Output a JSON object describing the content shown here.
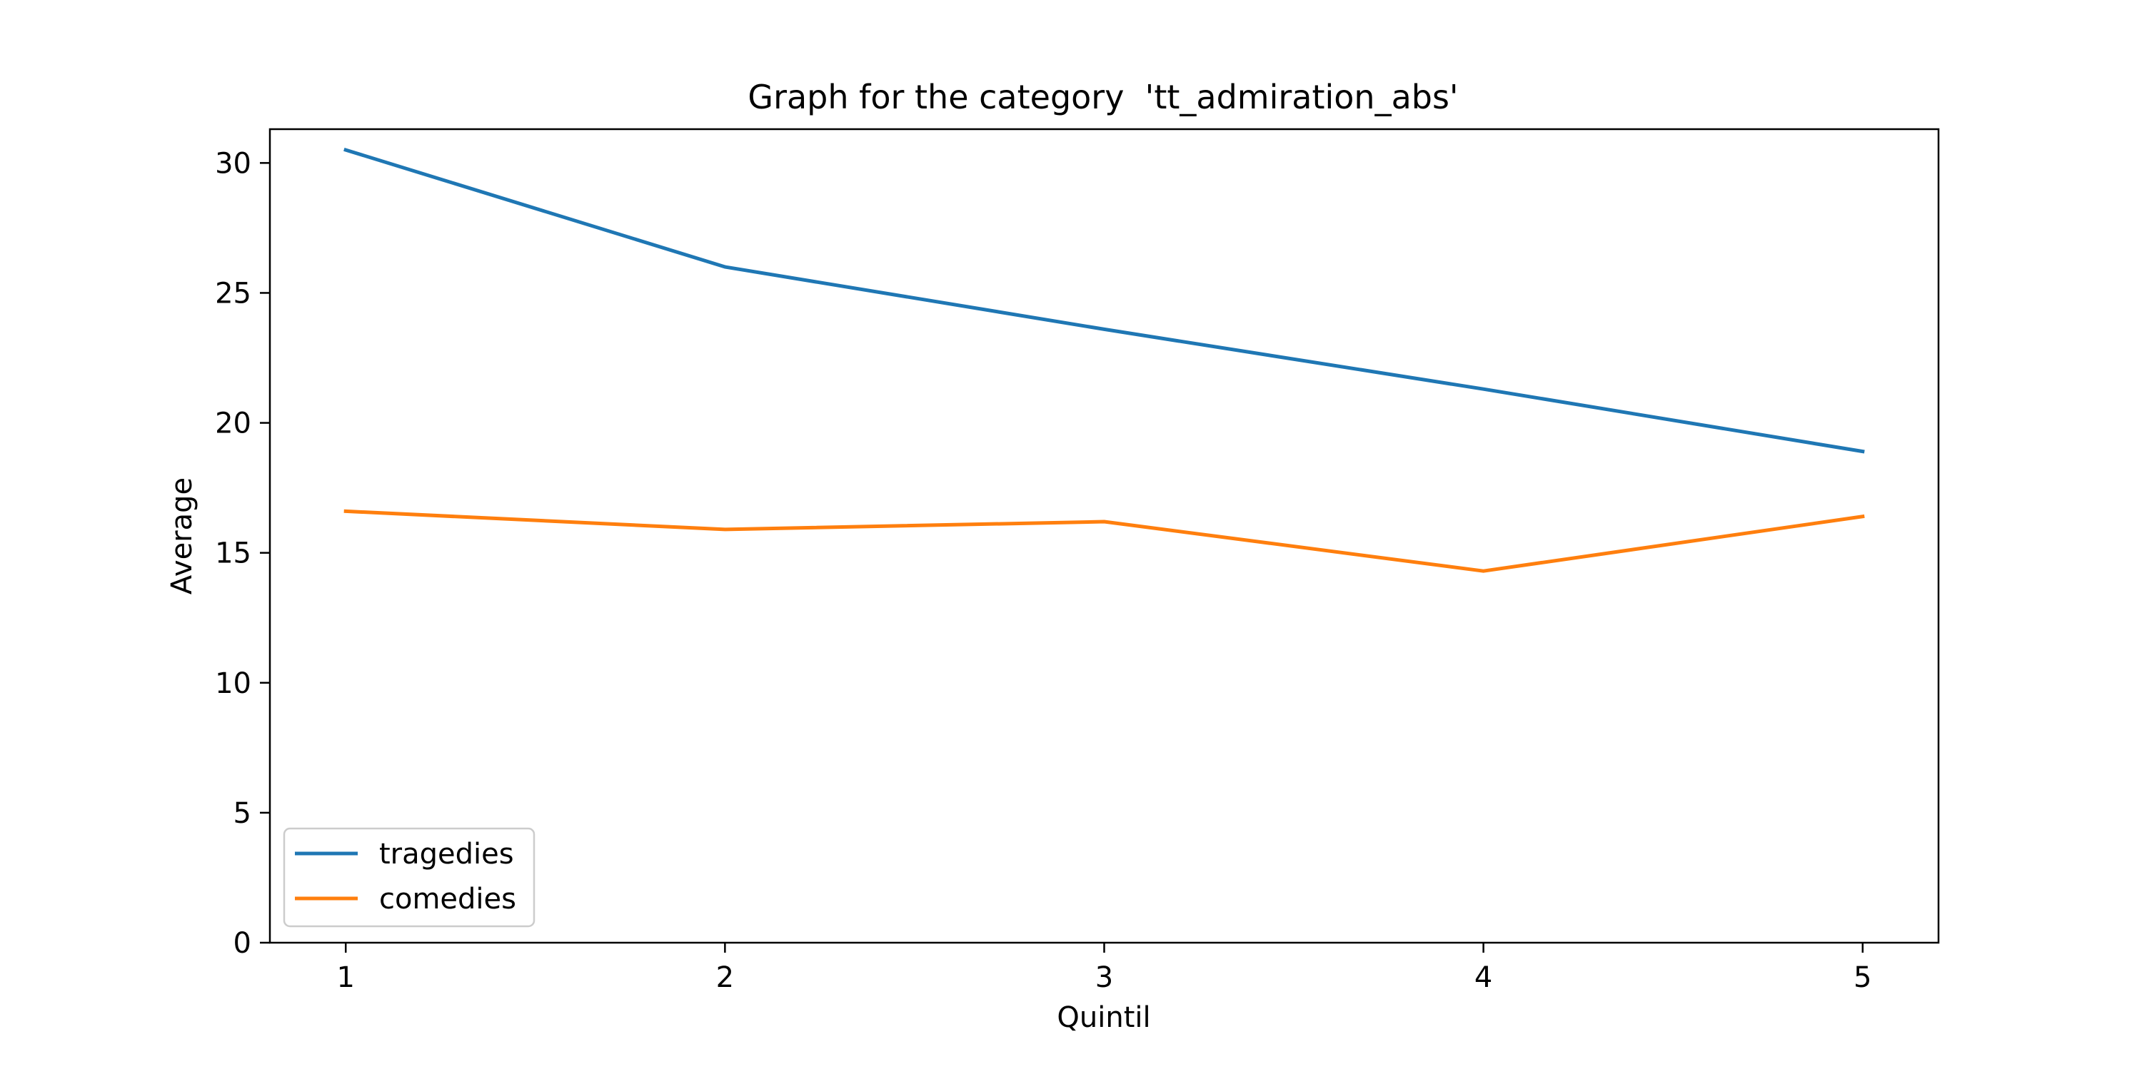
{
  "chart_data": {
    "type": "line",
    "title": "Graph for the category  'tt_admiration_abs'",
    "xlabel": "Quintil",
    "ylabel": "Average",
    "x": [
      1,
      2,
      3,
      4,
      5
    ],
    "xlim": [
      0.8,
      5.2
    ],
    "ylim": [
      0,
      31.3
    ],
    "xticks": [
      1,
      2,
      3,
      4,
      5
    ],
    "yticks": [
      0,
      5,
      10,
      15,
      20,
      25,
      30
    ],
    "grid": false,
    "legend_position": "lower left",
    "series": [
      {
        "name": "tragedies",
        "color": "#1f77b4",
        "values": [
          30.5,
          26.0,
          23.6,
          21.3,
          18.9
        ]
      },
      {
        "name": "comedies",
        "color": "#ff7f0e",
        "values": [
          16.6,
          15.9,
          16.2,
          14.3,
          16.4
        ]
      }
    ]
  }
}
